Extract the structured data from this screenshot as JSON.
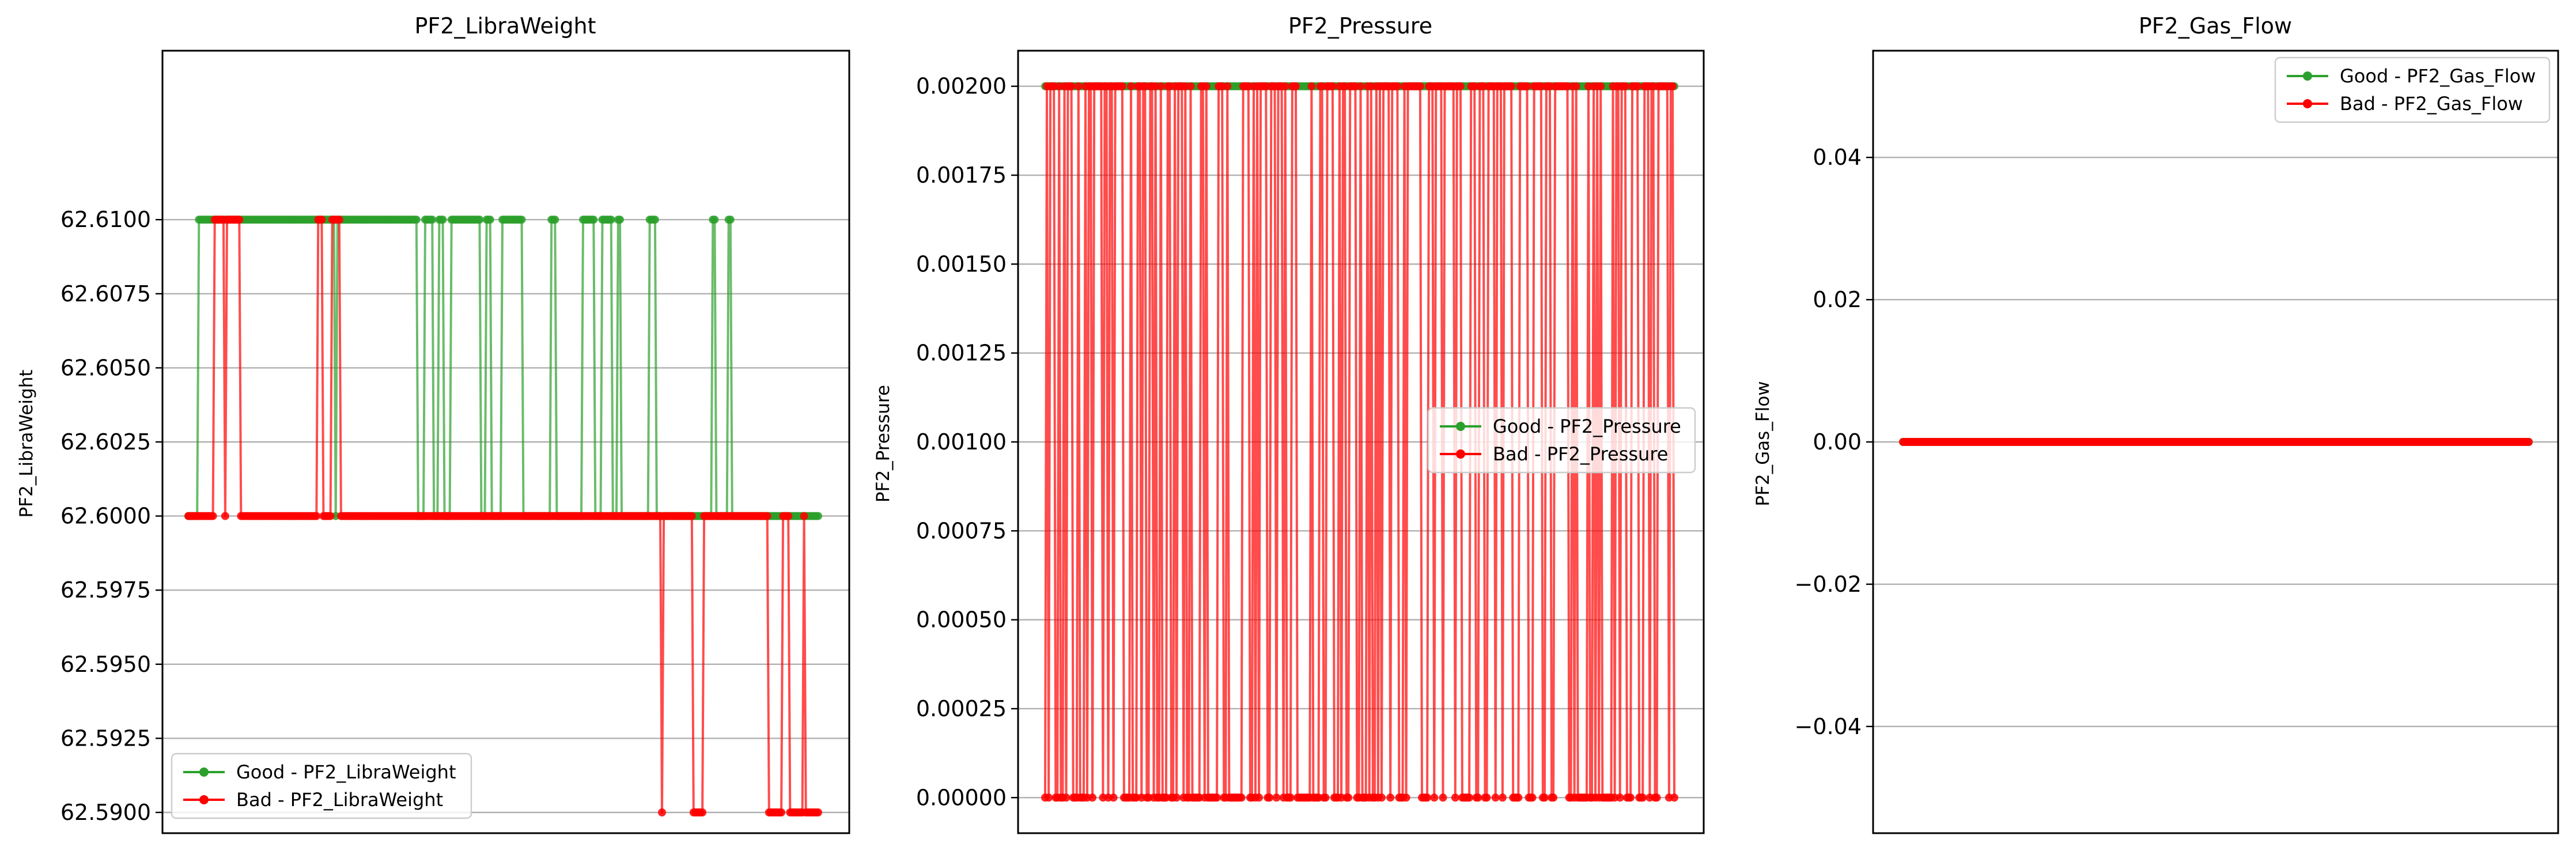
{
  "chart_data": [
    {
      "type": "line",
      "title": "PF2_LibraWeight",
      "xlabel": "",
      "ylabel": "PF2_LibraWeight",
      "ylim": [
        62.5893,
        62.6157
      ],
      "yticks": [
        "62.5900",
        "62.5925",
        "62.5950",
        "62.5975",
        "62.6000",
        "62.6025",
        "62.6050",
        "62.6075",
        "62.6100"
      ],
      "grid": "y",
      "legend": "lower-left",
      "n_points": 360,
      "levels": [
        62.61,
        62.6,
        62.59
      ],
      "series": [
        {
          "name": "Good - PF2_LibraWeight",
          "color": "#2ca02c",
          "segments": [
            [
              0,
              5,
              62.6
            ],
            [
              6,
              83,
              62.61
            ],
            [
              84,
              84,
              62.6
            ],
            [
              85,
              99,
              62.61
            ],
            [
              100,
              130,
              62.61
            ],
            [
              131,
              134,
              62.6
            ],
            [
              135,
              139,
              62.61
            ],
            [
              140,
              142,
              62.6
            ],
            [
              143,
              145,
              62.61
            ],
            [
              146,
              149,
              62.6
            ],
            [
              150,
              166,
              62.61
            ],
            [
              167,
              169,
              62.6
            ],
            [
              170,
              172,
              62.61
            ],
            [
              173,
              178,
              62.6
            ],
            [
              179,
              190,
              62.61
            ],
            [
              191,
              206,
              62.6
            ],
            [
              207,
              209,
              62.61
            ],
            [
              210,
              224,
              62.6
            ],
            [
              225,
              231,
              62.61
            ],
            [
              232,
              235,
              62.6
            ],
            [
              236,
              241,
              62.61
            ],
            [
              242,
              244,
              62.6
            ],
            [
              245,
              246,
              62.61
            ],
            [
              247,
              262,
              62.6
            ],
            [
              263,
              266,
              62.61
            ],
            [
              267,
              298,
              62.6
            ],
            [
              299,
              300,
              62.61
            ],
            [
              301,
              307,
              62.6
            ],
            [
              308,
              309,
              62.61
            ],
            [
              310,
              359,
              62.6
            ]
          ]
        },
        {
          "name": "Bad - PF2_LibraWeight",
          "color": "#ff0000",
          "segments": [
            [
              0,
              14,
              62.6
            ],
            [
              15,
              20,
              62.61
            ],
            [
              21,
              21,
              62.6
            ],
            [
              22,
              29,
              62.61
            ],
            [
              30,
              73,
              62.6
            ],
            [
              74,
              76,
              62.61
            ],
            [
              77,
              81,
              62.6
            ],
            [
              82,
              86,
              62.61
            ],
            [
              87,
              269,
              62.6
            ],
            [
              270,
              270,
              62.59
            ],
            [
              271,
              287,
              62.6
            ],
            [
              288,
              293,
              62.59
            ],
            [
              294,
              330,
              62.6
            ],
            [
              331,
              338,
              62.59
            ],
            [
              339,
              342,
              62.6
            ],
            [
              343,
              350,
              62.59
            ],
            [
              351,
              351,
              62.6
            ],
            [
              352,
              359,
              62.59
            ]
          ]
        }
      ]
    },
    {
      "type": "line",
      "title": "PF2_Pressure",
      "xlabel": "",
      "ylabel": "PF2_Pressure",
      "ylim": [
        -0.0001,
        0.0021
      ],
      "yticks": [
        "0.00000",
        "0.00025",
        "0.00050",
        "0.00075",
        "0.00100",
        "0.00125",
        "0.00150",
        "0.00175",
        "0.00200"
      ],
      "grid": "y",
      "legend": "center-right",
      "n_points": 360,
      "levels": [
        0.002,
        0.0
      ],
      "series": [
        {
          "name": "Good - PF2_Pressure",
          "color": "#2ca02c",
          "segments": [
            [
              0,
              359,
              0.002
            ]
          ]
        },
        {
          "name": "Bad - PF2_Pressure",
          "color": "#ff0000",
          "toggle_seed": 11,
          "toggle_prob": 0.42,
          "high": 0.002,
          "low": 0.0
        }
      ]
    },
    {
      "type": "line",
      "title": "PF2_Gas_Flow",
      "xlabel": "",
      "ylabel": "PF2_Gas_Flow",
      "ylim": [
        -0.055,
        0.055
      ],
      "yticks": [
        "−0.04",
        "−0.02",
        "0.00",
        "0.02",
        "0.04"
      ],
      "grid": "y",
      "legend": "upper-right",
      "n_points": 360,
      "levels": [
        0.0
      ],
      "series": [
        {
          "name": "Good - PF2_Gas_Flow",
          "color": "#2ca02c",
          "segments": [
            [
              0,
              359,
              0.0
            ]
          ]
        },
        {
          "name": "Bad - PF2_Gas_Flow",
          "color": "#ff0000",
          "segments": [
            [
              0,
              359,
              0.0
            ]
          ]
        }
      ]
    }
  ]
}
